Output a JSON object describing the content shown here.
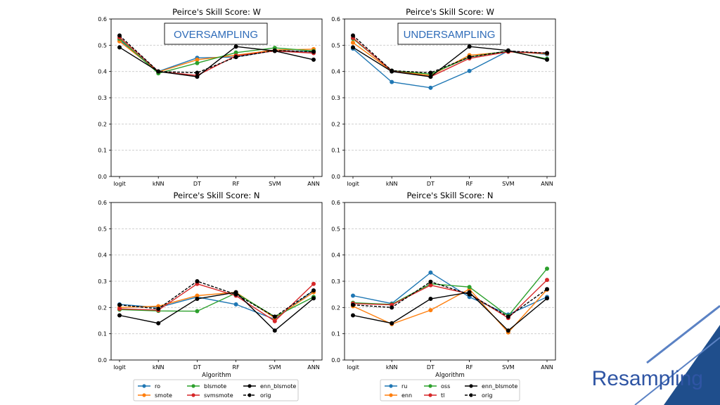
{
  "slide_title": "Resampling",
  "colors": {
    "accent_dark": "#1f4e8c",
    "accent_light": "#5b82c4",
    "label_blue": "#2e6bb8",
    "ro": "#1f77b4",
    "ru": "#1f77b4",
    "smote": "#ff7f0e",
    "enn": "#ff7f0e",
    "blsmote": "#2ca02c",
    "oss": "#2ca02c",
    "svmsmote": "#d62728",
    "tl": "#d62728",
    "black": "#000000"
  },
  "legends": [
    {
      "entries": [
        {
          "key": "ro",
          "label": "ro"
        },
        {
          "key": "smote",
          "label": "smote"
        },
        {
          "key": "blsmote",
          "label": "blsmote"
        },
        {
          "key": "svmsmote",
          "label": "svmsmote"
        },
        {
          "key": "enn_blsmote",
          "label": "enn_blsmote"
        },
        {
          "key": "orig",
          "label": "orig"
        }
      ]
    },
    {
      "entries": [
        {
          "key": "ru",
          "label": "ru"
        },
        {
          "key": "enn",
          "label": "enn"
        },
        {
          "key": "oss",
          "label": "oss"
        },
        {
          "key": "tl",
          "label": "tl"
        },
        {
          "key": "enn_blsmote",
          "label": "enn_blsmote"
        },
        {
          "key": "orig",
          "label": "orig"
        }
      ]
    }
  ],
  "chart_data": [
    {
      "id": "over-w",
      "type": "line",
      "title": "Peirce's Skill Score: W",
      "annotation": "OVERSAMPLING",
      "categories": [
        "logit",
        "kNN",
        "DT",
        "RF",
        "SVM",
        "ANN"
      ],
      "xlabel": "",
      "ylabel": "",
      "ylim": [
        0,
        0.6
      ],
      "yticks": [
        "0.0",
        "0.1",
        "0.2",
        "0.3",
        "0.4",
        "0.5",
        "0.6"
      ],
      "grid": "y-dashed",
      "series": [
        {
          "name": "ro",
          "color_key": "ro",
          "dashed": false,
          "values": [
            0.52,
            0.4,
            0.452,
            0.455,
            0.48,
            0.475
          ]
        },
        {
          "name": "smote",
          "color_key": "smote",
          "dashed": false,
          "values": [
            0.515,
            0.398,
            0.445,
            0.462,
            0.482,
            0.485
          ]
        },
        {
          "name": "blsmote",
          "color_key": "blsmote",
          "dashed": false,
          "values": [
            0.525,
            0.393,
            0.432,
            0.472,
            0.49,
            0.478
          ]
        },
        {
          "name": "svmsmote",
          "color_key": "svmsmote",
          "dashed": false,
          "values": [
            0.53,
            0.4,
            0.385,
            0.46,
            0.478,
            0.47
          ]
        },
        {
          "name": "enn_blsmote",
          "color_key": "black",
          "dashed": false,
          "values": [
            0.492,
            0.4,
            0.38,
            0.495,
            0.478,
            0.445
          ]
        },
        {
          "name": "orig",
          "color_key": "black",
          "dashed": true,
          "values": [
            0.537,
            0.4,
            0.395,
            0.455,
            0.48,
            0.475
          ]
        }
      ]
    },
    {
      "id": "under-w",
      "type": "line",
      "title": "Peirce's Skill Score: W",
      "annotation": "UNDERSAMPLING",
      "categories": [
        "logit",
        "kNN",
        "DT",
        "RF",
        "SVM",
        "ANN"
      ],
      "xlabel": "",
      "ylabel": "",
      "ylim": [
        0,
        0.6
      ],
      "yticks": [
        "0.0",
        "0.1",
        "0.2",
        "0.3",
        "0.4",
        "0.5",
        "0.6"
      ],
      "grid": "y-dashed",
      "series": [
        {
          "name": "ru",
          "color_key": "ru",
          "dashed": false,
          "values": [
            0.487,
            0.36,
            0.338,
            0.402,
            0.478,
            0.465
          ]
        },
        {
          "name": "enn",
          "color_key": "enn",
          "dashed": false,
          "values": [
            0.51,
            0.402,
            0.385,
            0.462,
            0.475,
            0.468
          ]
        },
        {
          "name": "oss",
          "color_key": "oss",
          "dashed": false,
          "values": [
            0.525,
            0.403,
            0.39,
            0.455,
            0.478,
            0.448
          ]
        },
        {
          "name": "tl",
          "color_key": "tl",
          "dashed": false,
          "values": [
            0.528,
            0.402,
            0.38,
            0.45,
            0.475,
            0.47
          ]
        },
        {
          "name": "enn_blsmote",
          "color_key": "black",
          "dashed": false,
          "values": [
            0.492,
            0.4,
            0.38,
            0.495,
            0.48,
            0.445
          ]
        },
        {
          "name": "orig",
          "color_key": "black",
          "dashed": true,
          "values": [
            0.537,
            0.403,
            0.395,
            0.455,
            0.478,
            0.47
          ]
        }
      ]
    },
    {
      "id": "over-n",
      "type": "line",
      "title": "Peirce's Skill Score: N",
      "annotation": "",
      "categories": [
        "logit",
        "kNN",
        "DT",
        "RF",
        "SVM",
        "ANN"
      ],
      "xlabel": "Algorithm",
      "ylabel": "",
      "ylim": [
        0,
        0.6
      ],
      "yticks": [
        "0.0",
        "0.1",
        "0.2",
        "0.3",
        "0.4",
        "0.5",
        "0.6"
      ],
      "grid": "y-dashed",
      "series": [
        {
          "name": "ro",
          "color_key": "ro",
          "dashed": false,
          "values": [
            0.212,
            0.2,
            0.24,
            0.212,
            0.155,
            0.265
          ]
        },
        {
          "name": "smote",
          "color_key": "smote",
          "dashed": false,
          "values": [
            0.2,
            0.205,
            0.245,
            0.258,
            0.16,
            0.258
          ]
        },
        {
          "name": "blsmote",
          "color_key": "blsmote",
          "dashed": false,
          "values": [
            0.192,
            0.187,
            0.186,
            0.255,
            0.165,
            0.24
          ]
        },
        {
          "name": "svmsmote",
          "color_key": "svmsmote",
          "dashed": false,
          "values": [
            0.195,
            0.19,
            0.29,
            0.245,
            0.148,
            0.29
          ]
        },
        {
          "name": "enn_blsmote",
          "color_key": "black",
          "dashed": false,
          "values": [
            0.17,
            0.14,
            0.233,
            0.258,
            0.112,
            0.235
          ]
        },
        {
          "name": "orig",
          "color_key": "black",
          "dashed": true,
          "values": [
            0.21,
            0.195,
            0.3,
            0.25,
            0.165,
            0.265
          ]
        }
      ]
    },
    {
      "id": "under-n",
      "type": "line",
      "title": "Peirce's Skill Score: N",
      "annotation": "",
      "categories": [
        "logit",
        "kNN",
        "DT",
        "RF",
        "SVM",
        "ANN"
      ],
      "xlabel": "Algorithm",
      "ylabel": "",
      "ylim": [
        0,
        0.6
      ],
      "yticks": [
        "0.0",
        "0.1",
        "0.2",
        "0.3",
        "0.4",
        "0.5",
        "0.6"
      ],
      "grid": "y-dashed",
      "series": [
        {
          "name": "ru",
          "color_key": "ru",
          "dashed": false,
          "values": [
            0.245,
            0.215,
            0.333,
            0.24,
            0.173,
            0.24
          ]
        },
        {
          "name": "enn",
          "color_key": "enn",
          "dashed": false,
          "values": [
            0.205,
            0.137,
            0.19,
            0.27,
            0.105,
            0.268
          ]
        },
        {
          "name": "oss",
          "color_key": "oss",
          "dashed": false,
          "values": [
            0.218,
            0.212,
            0.29,
            0.278,
            0.168,
            0.348
          ]
        },
        {
          "name": "tl",
          "color_key": "tl",
          "dashed": false,
          "values": [
            0.215,
            0.21,
            0.285,
            0.252,
            0.16,
            0.305
          ]
        },
        {
          "name": "enn_blsmote",
          "color_key": "black",
          "dashed": false,
          "values": [
            0.17,
            0.14,
            0.233,
            0.258,
            0.112,
            0.235
          ]
        },
        {
          "name": "orig",
          "color_key": "black",
          "dashed": true,
          "values": [
            0.21,
            0.2,
            0.298,
            0.25,
            0.165,
            0.27
          ]
        }
      ]
    }
  ]
}
